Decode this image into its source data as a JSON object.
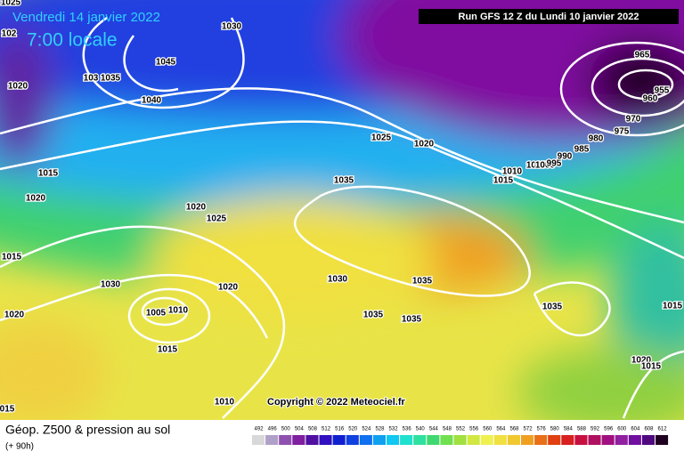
{
  "header": {
    "date": "Vendredi 14 janvier 2022",
    "time": "7:00 locale",
    "run": "Run GFS 12 Z du Lundi 10 janvier 2022"
  },
  "copyright": "Copyright © 2022 Meteociel.fr",
  "isobar_labels": [
    "1025",
    "1030",
    "102",
    "1045",
    "103",
    "1035",
    "1040",
    "1020",
    "1025",
    "1020",
    "1015",
    "1020",
    "1035",
    "1010",
    "1005",
    "1000",
    "995",
    "990",
    "985",
    "980",
    "975",
    "970",
    "965",
    "960",
    "955",
    "1015",
    "1020",
    "1025",
    "1015",
    "1030",
    "1020",
    "1030",
    "1035",
    "1035",
    "1035",
    "1035",
    "1015",
    "1020",
    "1005",
    "1010",
    "1015",
    "1020",
    "1015",
    "1010",
    "015"
  ],
  "footer": {
    "title": "Géop. Z500 & pression au sol",
    "lead": "(+ 90h)"
  },
  "legend": {
    "scale": [
      492,
      496,
      500,
      504,
      508,
      512,
      516,
      520,
      524,
      528,
      532,
      536,
      540,
      544,
      548,
      552,
      556,
      560,
      564,
      568,
      572,
      576,
      580,
      584,
      588,
      592,
      596,
      600,
      604,
      608,
      612
    ],
    "colors": [
      "#d8d8d8",
      "#b0a0c8",
      "#9050b0",
      "#8020a0",
      "#5010a0",
      "#3010c0",
      "#1020d0",
      "#1040e0",
      "#1070f0",
      "#10a0f0",
      "#10c8f0",
      "#20e0d0",
      "#30e0a0",
      "#40d870",
      "#70e050",
      "#a0e040",
      "#d0e840",
      "#f0f050",
      "#f0e040",
      "#f0c830",
      "#f0a020",
      "#e87018",
      "#e04010",
      "#d82020",
      "#c81040",
      "#b01060",
      "#a01080",
      "#9020a0",
      "#7010a0",
      "#500880",
      "#200020"
    ]
  }
}
